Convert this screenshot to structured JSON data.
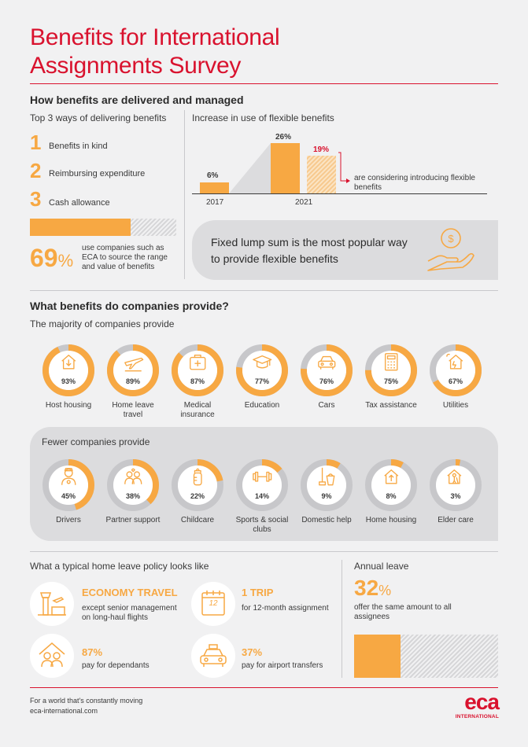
{
  "title_line1": "Benefits for International",
  "title_line2": "Assignments Survey",
  "section1": {
    "heading": "How benefits are delivered and managed",
    "top3_title": "Top 3 ways of delivering benefits",
    "top3": [
      {
        "num": "1",
        "label": "Benefits in kind"
      },
      {
        "num": "2",
        "label": "Reimbursing expenditure"
      },
      {
        "num": "3",
        "label": "Cash allowance"
      }
    ],
    "eca_stat_value": "69",
    "eca_stat_sign": "%",
    "eca_stat_fraction": 0.69,
    "eca_stat_text_1": "use companies such as",
    "eca_stat_text_2": "ECA to source the range",
    "eca_stat_text_3": "and value of benefits",
    "flex_title": "Increase in use of flexible benefits",
    "flex_2017_value": "6%",
    "flex_2021_value": "26%",
    "flex_considering_value": "19%",
    "flex_2017_label": "2017",
    "flex_2021_label": "2021",
    "flex_considering_text_1": "are considering introducing flexible",
    "flex_considering_text_2": "benefits",
    "lump_sum_line1": "Fixed lump sum is the most popular way",
    "lump_sum_line2": "to provide flexible benefits"
  },
  "section2": {
    "heading": "What benefits do companies provide?",
    "majority_title": "The majority of companies provide",
    "majority": [
      {
        "pct": "93%",
        "value": 93,
        "label1": "Host housing",
        "label2": "",
        "icon": "house-arrow-icon"
      },
      {
        "pct": "89%",
        "value": 89,
        "label1": "Home leave",
        "label2": "travel",
        "icon": "airplane-icon"
      },
      {
        "pct": "87%",
        "value": 87,
        "label1": "Medical",
        "label2": "insurance",
        "icon": "medical-case-icon"
      },
      {
        "pct": "77%",
        "value": 77,
        "label1": "Education",
        "label2": "",
        "icon": "graduation-cap-icon"
      },
      {
        "pct": "76%",
        "value": 76,
        "label1": "Cars",
        "label2": "",
        "icon": "car-icon"
      },
      {
        "pct": "75%",
        "value": 75,
        "label1": "Tax assistance",
        "label2": "",
        "icon": "calculator-icon"
      },
      {
        "pct": "67%",
        "value": 67,
        "label1": "Utilities",
        "label2": "",
        "icon": "house-plug-icon"
      }
    ],
    "fewer_title": "Fewer companies provide",
    "fewer": [
      {
        "pct": "45%",
        "value": 45,
        "label1": "Drivers",
        "label2": "",
        "icon": "driver-icon"
      },
      {
        "pct": "38%",
        "value": 38,
        "label1": "Partner support",
        "label2": "",
        "icon": "partners-icon"
      },
      {
        "pct": "22%",
        "value": 22,
        "label1": "Childcare",
        "label2": "",
        "icon": "baby-bottle-icon"
      },
      {
        "pct": "14%",
        "value": 14,
        "label1": "Sports & social",
        "label2": "clubs",
        "icon": "dumbbell-icon"
      },
      {
        "pct": "9%",
        "value": 9,
        "label1": "Domestic help",
        "label2": "",
        "icon": "mop-bucket-icon"
      },
      {
        "pct": "8%",
        "value": 8,
        "label1": "Home housing",
        "label2": "",
        "icon": "house-up-arrow-icon"
      },
      {
        "pct": "3%",
        "value": 3,
        "label1": "Elder care",
        "label2": "",
        "icon": "elder-care-icon"
      }
    ]
  },
  "section3": {
    "home_leave_title": "What a typical home leave policy looks like",
    "economy_title": "ECONOMY TRAVEL",
    "economy_text_1": "except senior management",
    "economy_text_2": "on long-haul flights",
    "trip_title": "1 TRIP",
    "trip_text": "for 12-month assignment",
    "calendar_number": "12",
    "dependants_title": "87%",
    "dependants_text": "pay for dependants",
    "transfers_title": "37%",
    "transfers_text": "pay for airport transfers",
    "annual_title": "Annual leave",
    "annual_value": "32",
    "annual_sign": "%",
    "annual_fraction": 0.32,
    "annual_text_1": "offer the same amount to all",
    "annual_text_2": "assignees"
  },
  "footer": {
    "tagline": "For a world that's constantly moving",
    "url": "eca-international.com",
    "logo_text": "eca",
    "logo_sub": "INTERNATIONAL"
  },
  "colors": {
    "accent": "#f7a843",
    "brand_red": "#d9122e",
    "ring_grey": "#c7c7ca",
    "panel_grey": "#dcdcde"
  }
}
